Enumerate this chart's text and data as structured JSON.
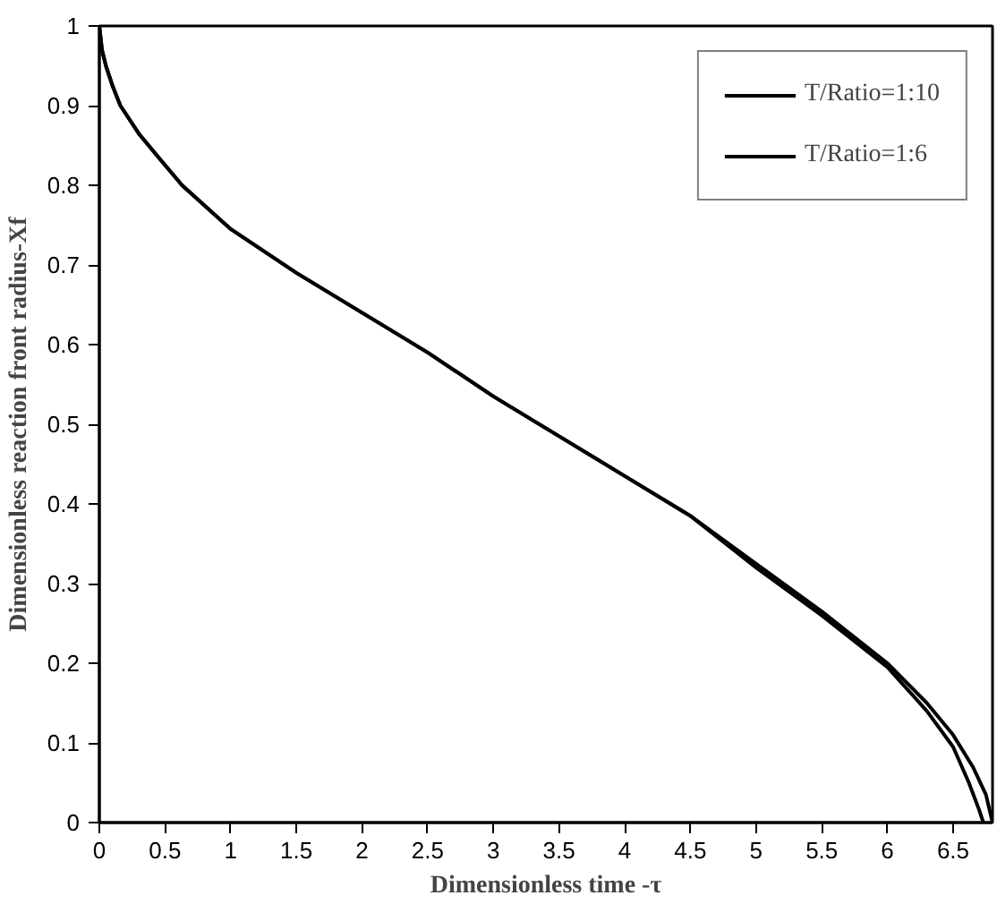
{
  "chart_data": {
    "type": "line",
    "xlabel": "Dimensionless time -τ",
    "ylabel": "Dimensionless reaction front radius-Xf",
    "xlim": [
      0,
      6.8
    ],
    "ylim": [
      0,
      1
    ],
    "xticks": [
      0,
      0.5,
      1,
      1.5,
      2,
      2.5,
      3,
      3.5,
      4,
      4.5,
      5,
      5.5,
      6,
      6.5
    ],
    "yticks": [
      0,
      0.1,
      0.2,
      0.3,
      0.4,
      0.5,
      0.6,
      0.7,
      0.8,
      0.9,
      1
    ],
    "grid": false,
    "legend": "top right",
    "marker": "none",
    "line_style": "solid",
    "series": [
      {
        "name": "T/Ratio=1:10",
        "color": "#000000",
        "x": [
          0,
          0.02,
          0.05,
          0.1,
          0.16,
          0.3,
          0.45,
          0.63,
          1.0,
          1.5,
          2.0,
          2.5,
          3.0,
          3.5,
          4.0,
          4.5,
          5.0,
          5.5,
          6.0,
          6.3,
          6.5,
          6.65,
          6.75,
          6.8
        ],
        "values": [
          1,
          0.97,
          0.95,
          0.925,
          0.9,
          0.865,
          0.835,
          0.8,
          0.745,
          0.69,
          0.64,
          0.59,
          0.535,
          0.485,
          0.435,
          0.385,
          0.325,
          0.265,
          0.2,
          0.15,
          0.11,
          0.07,
          0.035,
          0
        ]
      },
      {
        "name": "T/Ratio=1:6",
        "color": "#000000",
        "x": [
          0,
          0.02,
          0.05,
          0.1,
          0.16,
          0.3,
          0.45,
          0.63,
          1.0,
          1.5,
          2.0,
          2.5,
          3.0,
          3.5,
          4.0,
          4.5,
          5.0,
          5.5,
          6.0,
          6.3,
          6.5,
          6.62,
          6.7,
          6.73
        ],
        "values": [
          1,
          0.97,
          0.95,
          0.925,
          0.9,
          0.865,
          0.835,
          0.8,
          0.745,
          0.69,
          0.64,
          0.59,
          0.535,
          0.485,
          0.435,
          0.385,
          0.32,
          0.26,
          0.195,
          0.14,
          0.095,
          0.05,
          0.015,
          0
        ]
      }
    ]
  }
}
